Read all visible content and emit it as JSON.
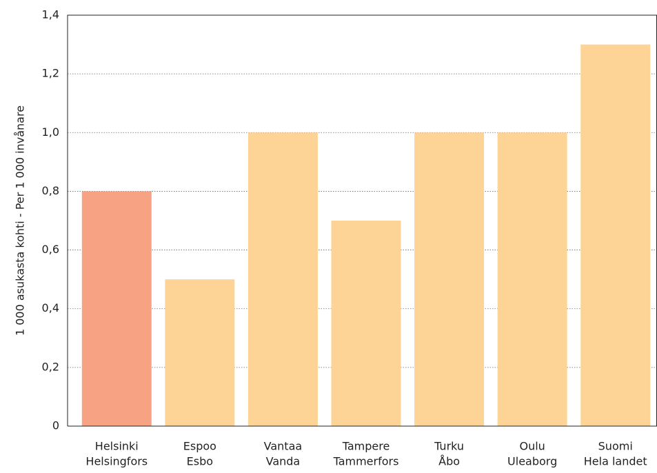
{
  "chart_data": {
    "type": "bar",
    "y_label": "1 000 asukasta kohti - Per 1 000 invånare",
    "categories": [
      [
        "Helsinki",
        "Helsingfors"
      ],
      [
        "Espoo",
        "Esbo"
      ],
      [
        "Vantaa",
        "Vanda"
      ],
      [
        "Tampere",
        "Tammerfors"
      ],
      [
        "Turku",
        "Åbo"
      ],
      [
        "Oulu",
        "Uleaborg"
      ],
      [
        "Suomi",
        "Hela landet"
      ]
    ],
    "values": [
      0.8,
      0.5,
      1.0,
      0.7,
      1.0,
      1.0,
      1.3
    ],
    "colors": [
      "#f7a282",
      "#fdd495",
      "#fdd495",
      "#fdd495",
      "#fdd495",
      "#fdd495",
      "#fdd495"
    ],
    "ylim": [
      0,
      1.4
    ],
    "yticks": [
      0,
      {
        "value": 0.2,
        "label": "0,2"
      },
      {
        "value": 0.4,
        "label": "0,4"
      },
      {
        "value": 0.6,
        "label": "0,6"
      },
      {
        "value": 0.8,
        "label": "0,8"
      },
      {
        "value": 1.0,
        "label": "1,0"
      },
      {
        "value": 1.2,
        "label": "1,2"
      },
      {
        "value": 1.4,
        "label": "1,4"
      }
    ],
    "grid": true
  }
}
